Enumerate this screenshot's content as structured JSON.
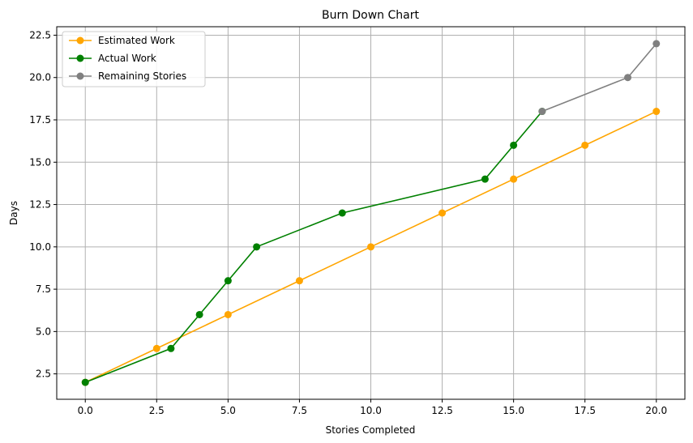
{
  "chart_data": {
    "type": "line",
    "title": "Burn Down Chart",
    "xlabel": "Stories Completed",
    "ylabel": "Days",
    "xlim": [
      -1.0,
      21.0
    ],
    "ylim": [
      1.0,
      23.0
    ],
    "xticks": [
      0.0,
      2.5,
      5.0,
      7.5,
      10.0,
      12.5,
      15.0,
      17.5,
      20.0
    ],
    "yticks": [
      2.5,
      5.0,
      7.5,
      10.0,
      12.5,
      15.0,
      17.5,
      20.0,
      22.5
    ],
    "xtick_labels": [
      "0.0",
      "2.5",
      "5.0",
      "7.5",
      "10.0",
      "12.5",
      "15.0",
      "17.5",
      "20.0"
    ],
    "ytick_labels": [
      "2.5",
      "5.0",
      "7.5",
      "10.0",
      "12.5",
      "15.0",
      "17.5",
      "20.0",
      "22.5"
    ],
    "grid": true,
    "legend_position": "top-left",
    "series": [
      {
        "name": "Estimated Work",
        "color": "#ffa500",
        "x": [
          0,
          2.5,
          5,
          7.5,
          10,
          12.5,
          15,
          17.5,
          20
        ],
        "y": [
          2,
          4,
          6,
          8,
          10,
          12,
          14,
          16,
          18
        ]
      },
      {
        "name": "Actual Work",
        "color": "#008000",
        "x": [
          0,
          3,
          4,
          5,
          6,
          9,
          14,
          15,
          16
        ],
        "y": [
          2,
          4,
          6,
          8,
          10,
          12,
          14,
          16,
          18
        ]
      },
      {
        "name": "Remaining Stories",
        "color": "#808080",
        "x": [
          16,
          19,
          20
        ],
        "y": [
          18,
          20,
          22
        ]
      }
    ]
  }
}
